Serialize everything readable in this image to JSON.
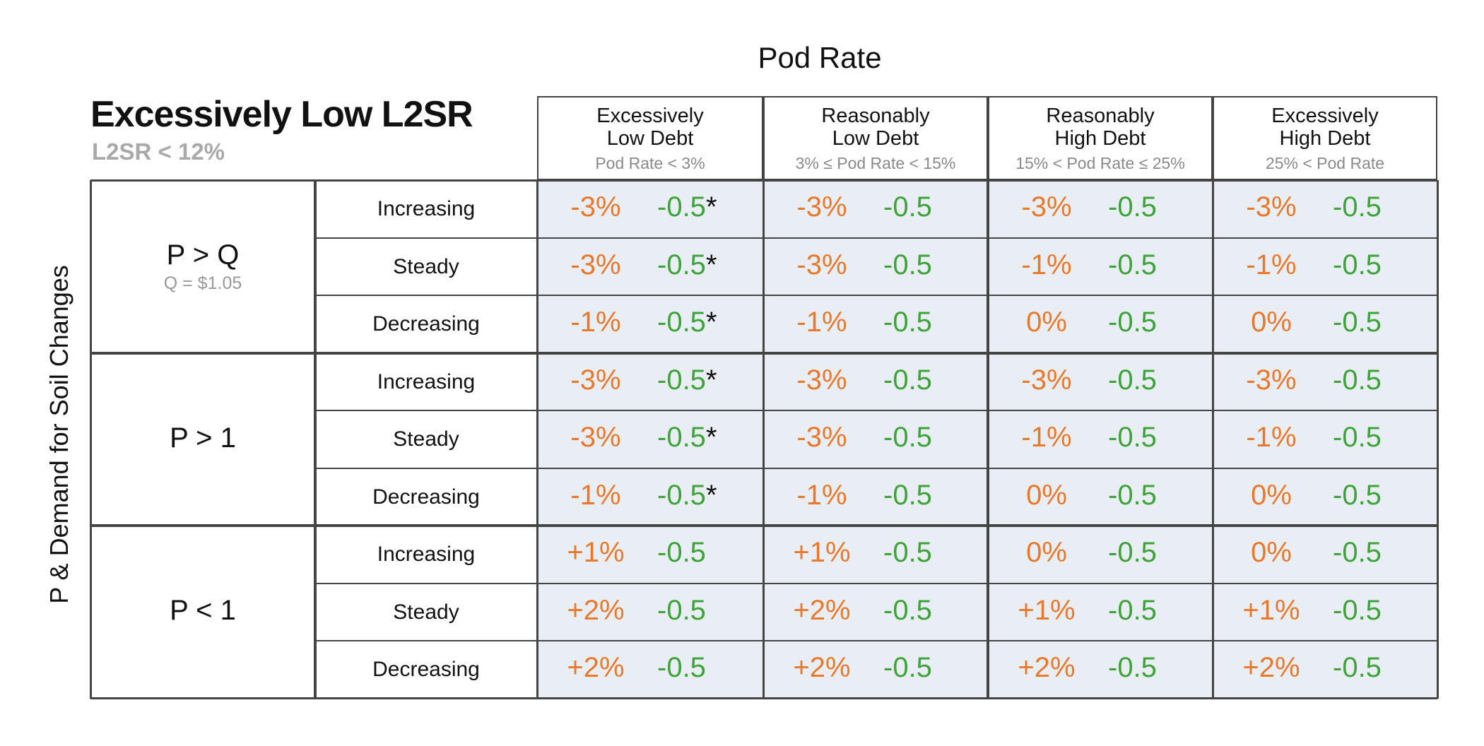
{
  "header": {
    "x_axis_title": "Pod Rate",
    "title": "Excessively Low L2SR",
    "subtitle": "L2SR < 12%",
    "y_axis_title": "P & Demand for Soil Changes"
  },
  "columns": [
    {
      "line1": "Excessively",
      "line2": "Low Debt",
      "range": "Pod Rate < 3%"
    },
    {
      "line1": "Reasonably",
      "line2": "Low Debt",
      "range": "3% ≤ Pod Rate < 15%"
    },
    {
      "line1": "Reasonably",
      "line2": "High Debt",
      "range": "15% < Pod Rate ≤ 25%"
    },
    {
      "line1": "Excessively",
      "line2": "High Debt",
      "range": "25% < Pod Rate"
    }
  ],
  "groups": [
    {
      "label": "P > Q",
      "sublabel": "Q = $1.05"
    },
    {
      "label": "P > 1",
      "sublabel": ""
    },
    {
      "label": "P < 1",
      "sublabel": ""
    }
  ],
  "row_labels": [
    "Increasing",
    "Steady",
    "Decreasing",
    "Increasing",
    "Steady",
    "Decreasing",
    "Increasing",
    "Steady",
    "Decreasing"
  ],
  "colors": {
    "pct": "#e8782c",
    "delta": "#3ea33a",
    "cell_bg": "#e9eef5"
  },
  "chart_data": {
    "type": "table",
    "title": "Excessively Low L2SR",
    "subtitle": "L2SR < 12%",
    "xlabel": "Pod Rate",
    "ylabel": "P & Demand for Soil Changes",
    "cells": [
      [
        [
          "-3%",
          "-0.5",
          "*"
        ],
        [
          "-3%",
          "-0.5",
          ""
        ],
        [
          "-3%",
          "-0.5",
          ""
        ],
        [
          "-3%",
          "-0.5",
          ""
        ]
      ],
      [
        [
          "-3%",
          "-0.5",
          "*"
        ],
        [
          "-3%",
          "-0.5",
          ""
        ],
        [
          "-1%",
          "-0.5",
          ""
        ],
        [
          "-1%",
          "-0.5",
          ""
        ]
      ],
      [
        [
          "-1%",
          "-0.5",
          "*"
        ],
        [
          "-1%",
          "-0.5",
          ""
        ],
        [
          "0%",
          "-0.5",
          ""
        ],
        [
          "0%",
          "-0.5",
          ""
        ]
      ],
      [
        [
          "-3%",
          "-0.5",
          "*"
        ],
        [
          "-3%",
          "-0.5",
          ""
        ],
        [
          "-3%",
          "-0.5",
          ""
        ],
        [
          "-3%",
          "-0.5",
          ""
        ]
      ],
      [
        [
          "-3%",
          "-0.5",
          "*"
        ],
        [
          "-3%",
          "-0.5",
          ""
        ],
        [
          "-1%",
          "-0.5",
          ""
        ],
        [
          "-1%",
          "-0.5",
          ""
        ]
      ],
      [
        [
          "-1%",
          "-0.5",
          "*"
        ],
        [
          "-1%",
          "-0.5",
          ""
        ],
        [
          "0%",
          "-0.5",
          ""
        ],
        [
          "0%",
          "-0.5",
          ""
        ]
      ],
      [
        [
          "+1%",
          "-0.5",
          ""
        ],
        [
          "+1%",
          "-0.5",
          ""
        ],
        [
          "0%",
          "-0.5",
          ""
        ],
        [
          "0%",
          "-0.5",
          ""
        ]
      ],
      [
        [
          "+2%",
          "-0.5",
          ""
        ],
        [
          "+2%",
          "-0.5",
          ""
        ],
        [
          "+1%",
          "-0.5",
          ""
        ],
        [
          "+1%",
          "-0.5",
          ""
        ]
      ],
      [
        [
          "+2%",
          "-0.5",
          ""
        ],
        [
          "+2%",
          "-0.5",
          ""
        ],
        [
          "+2%",
          "-0.5",
          ""
        ],
        [
          "+2%",
          "-0.5",
          ""
        ]
      ]
    ]
  }
}
